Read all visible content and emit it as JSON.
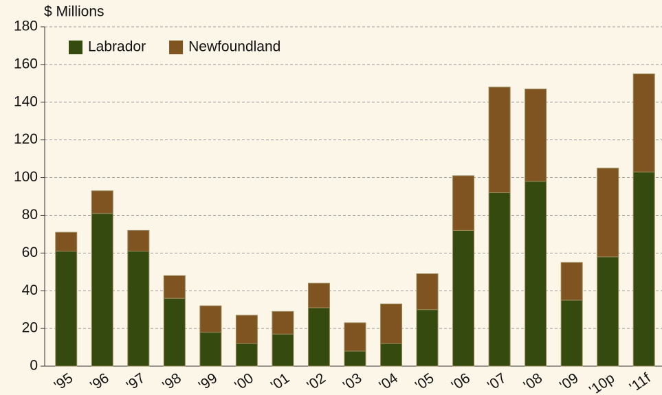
{
  "chart_data": {
    "type": "stacked_bar",
    "y_label": "$ Millions",
    "categories": [
      "'95",
      "'96",
      "'97",
      "'98",
      "'99",
      "'00",
      "'01",
      "'02",
      "'03",
      "'04",
      "'05",
      "'06",
      "'07",
      "'08",
      "'09",
      "'10p",
      "'11f"
    ],
    "series": [
      {
        "name": "Labrador",
        "color": "#344a0e",
        "values": [
          61,
          81,
          61,
          36,
          18,
          12,
          17,
          31,
          8,
          12,
          30,
          72,
          92,
          98,
          35,
          58,
          103
        ]
      },
      {
        "name": "Newfoundland",
        "color": "#7f5421",
        "values": [
          10,
          12,
          11,
          12,
          14,
          15,
          12,
          13,
          15,
          21,
          19,
          29,
          56,
          49,
          20,
          47,
          52
        ]
      }
    ],
    "ylim": [
      0,
      180
    ],
    "yticks": [
      0,
      20,
      40,
      60,
      80,
      100,
      120,
      140,
      160,
      180
    ],
    "grid": true,
    "legend": "top-left"
  }
}
